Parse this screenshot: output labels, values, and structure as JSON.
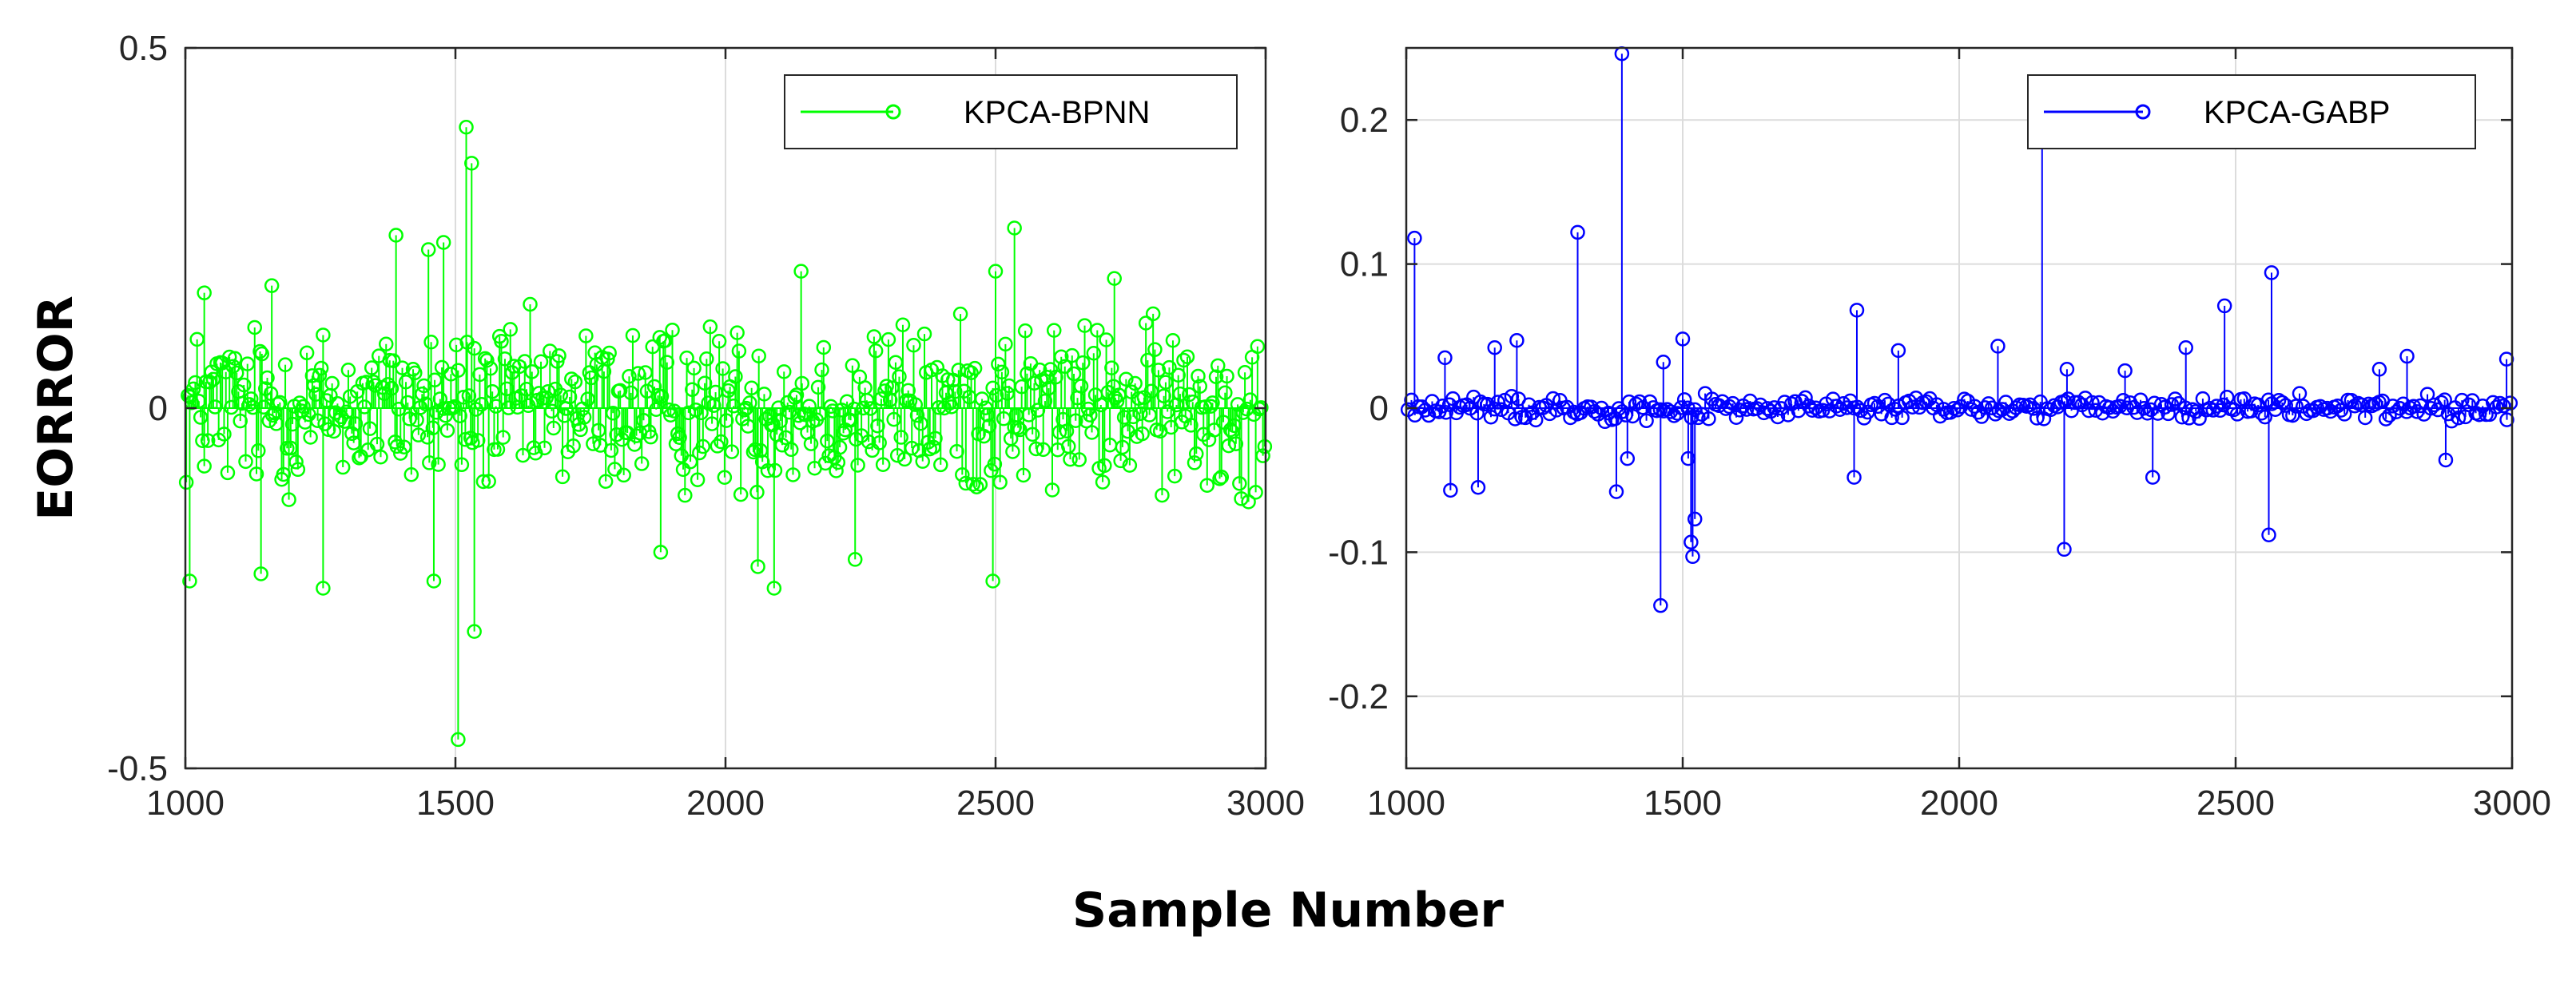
{
  "figure": {
    "ylabel": "EORROR",
    "xlabel": "Sample Number"
  },
  "colors": {
    "green_series": "#00ff00",
    "blue_series": "#0000ff",
    "axis": "#262626",
    "grid": "#dcdcdc"
  },
  "chart_data": [
    {
      "type": "stem",
      "panel": "left",
      "xlim": [
        1000,
        3000
      ],
      "ylim": [
        -0.5,
        0.5
      ],
      "xticks": [
        1000,
        1500,
        2000,
        2500,
        3000
      ],
      "xtick_labels": [
        "1000",
        "1500",
        "2000",
        "2500",
        "3000"
      ],
      "yticks": [
        -0.5,
        0,
        0.5
      ],
      "ytick_labels": [
        "-0.5",
        "0",
        "0.5"
      ],
      "legend": {
        "label": "KPCA-BPNN",
        "placement": "top-right"
      },
      "grid": true,
      "series": [
        {
          "name": "KPCA-BPNN",
          "color": "#00ff00",
          "points": 600,
          "typical_amplitude": 0.12,
          "notable_points": [
            {
              "x": 1008,
              "y": -0.24
            },
            {
              "x": 1035,
              "y": 0.16
            },
            {
              "x": 1140,
              "y": -0.23
            },
            {
              "x": 1160,
              "y": 0.17
            },
            {
              "x": 1255,
              "y": -0.25
            },
            {
              "x": 1390,
              "y": 0.24
            },
            {
              "x": 1450,
              "y": 0.22
            },
            {
              "x": 1460,
              "y": -0.24
            },
            {
              "x": 1478,
              "y": 0.23
            },
            {
              "x": 1505,
              "y": -0.46
            },
            {
              "x": 1520,
              "y": 0.39
            },
            {
              "x": 1530,
              "y": 0.34
            },
            {
              "x": 1535,
              "y": -0.31
            },
            {
              "x": 1880,
              "y": -0.2
            },
            {
              "x": 2060,
              "y": -0.22
            },
            {
              "x": 2090,
              "y": -0.25
            },
            {
              "x": 2140,
              "y": 0.19
            },
            {
              "x": 2240,
              "y": -0.21
            },
            {
              "x": 2495,
              "y": -0.24
            },
            {
              "x": 2500,
              "y": 0.19
            },
            {
              "x": 2535,
              "y": 0.25
            },
            {
              "x": 2720,
              "y": 0.18
            }
          ]
        }
      ]
    },
    {
      "type": "stem",
      "panel": "right",
      "xlim": [
        1000,
        3000
      ],
      "ylim": [
        -0.25,
        0.25
      ],
      "xticks": [
        1000,
        1500,
        2000,
        2500,
        3000
      ],
      "xtick_labels": [
        "1000",
        "1500",
        "2000",
        "2500",
        "3000"
      ],
      "yticks": [
        -0.2,
        -0.1,
        0,
        0.1,
        0.2
      ],
      "ytick_labels": [
        "-0.2",
        "-0.1",
        "0",
        "0.1",
        "0.2"
      ],
      "legend": {
        "label": "KPCA-GABP",
        "placement": "top-right"
      },
      "grid": true,
      "series": [
        {
          "name": "KPCA-GABP",
          "color": "#0000ff",
          "points": 320,
          "typical_amplitude": 0.012,
          "notable_points": [
            {
              "x": 1015,
              "y": 0.118
            },
            {
              "x": 1070,
              "y": 0.035
            },
            {
              "x": 1080,
              "y": -0.057
            },
            {
              "x": 1130,
              "y": -0.055
            },
            {
              "x": 1160,
              "y": 0.042
            },
            {
              "x": 1200,
              "y": 0.047
            },
            {
              "x": 1310,
              "y": 0.122
            },
            {
              "x": 1380,
              "y": -0.058
            },
            {
              "x": 1390,
              "y": 0.246
            },
            {
              "x": 1400,
              "y": -0.035
            },
            {
              "x": 1460,
              "y": -0.137
            },
            {
              "x": 1465,
              "y": 0.032
            },
            {
              "x": 1500,
              "y": 0.048
            },
            {
              "x": 1510,
              "y": -0.035
            },
            {
              "x": 1515,
              "y": -0.093
            },
            {
              "x": 1518,
              "y": -0.103
            },
            {
              "x": 1522,
              "y": -0.077
            },
            {
              "x": 1810,
              "y": -0.048
            },
            {
              "x": 1815,
              "y": 0.068
            },
            {
              "x": 1890,
              "y": 0.04
            },
            {
              "x": 2070,
              "y": 0.043
            },
            {
              "x": 2150,
              "y": 0.2
            },
            {
              "x": 2190,
              "y": -0.098
            },
            {
              "x": 2195,
              "y": 0.027
            },
            {
              "x": 2300,
              "y": 0.026
            },
            {
              "x": 2350,
              "y": -0.048
            },
            {
              "x": 2410,
              "y": 0.042
            },
            {
              "x": 2480,
              "y": 0.071
            },
            {
              "x": 2560,
              "y": -0.088
            },
            {
              "x": 2565,
              "y": 0.094
            },
            {
              "x": 2760,
              "y": 0.027
            },
            {
              "x": 2810,
              "y": 0.036
            },
            {
              "x": 2880,
              "y": -0.036
            },
            {
              "x": 2990,
              "y": 0.034
            }
          ]
        }
      ]
    }
  ]
}
